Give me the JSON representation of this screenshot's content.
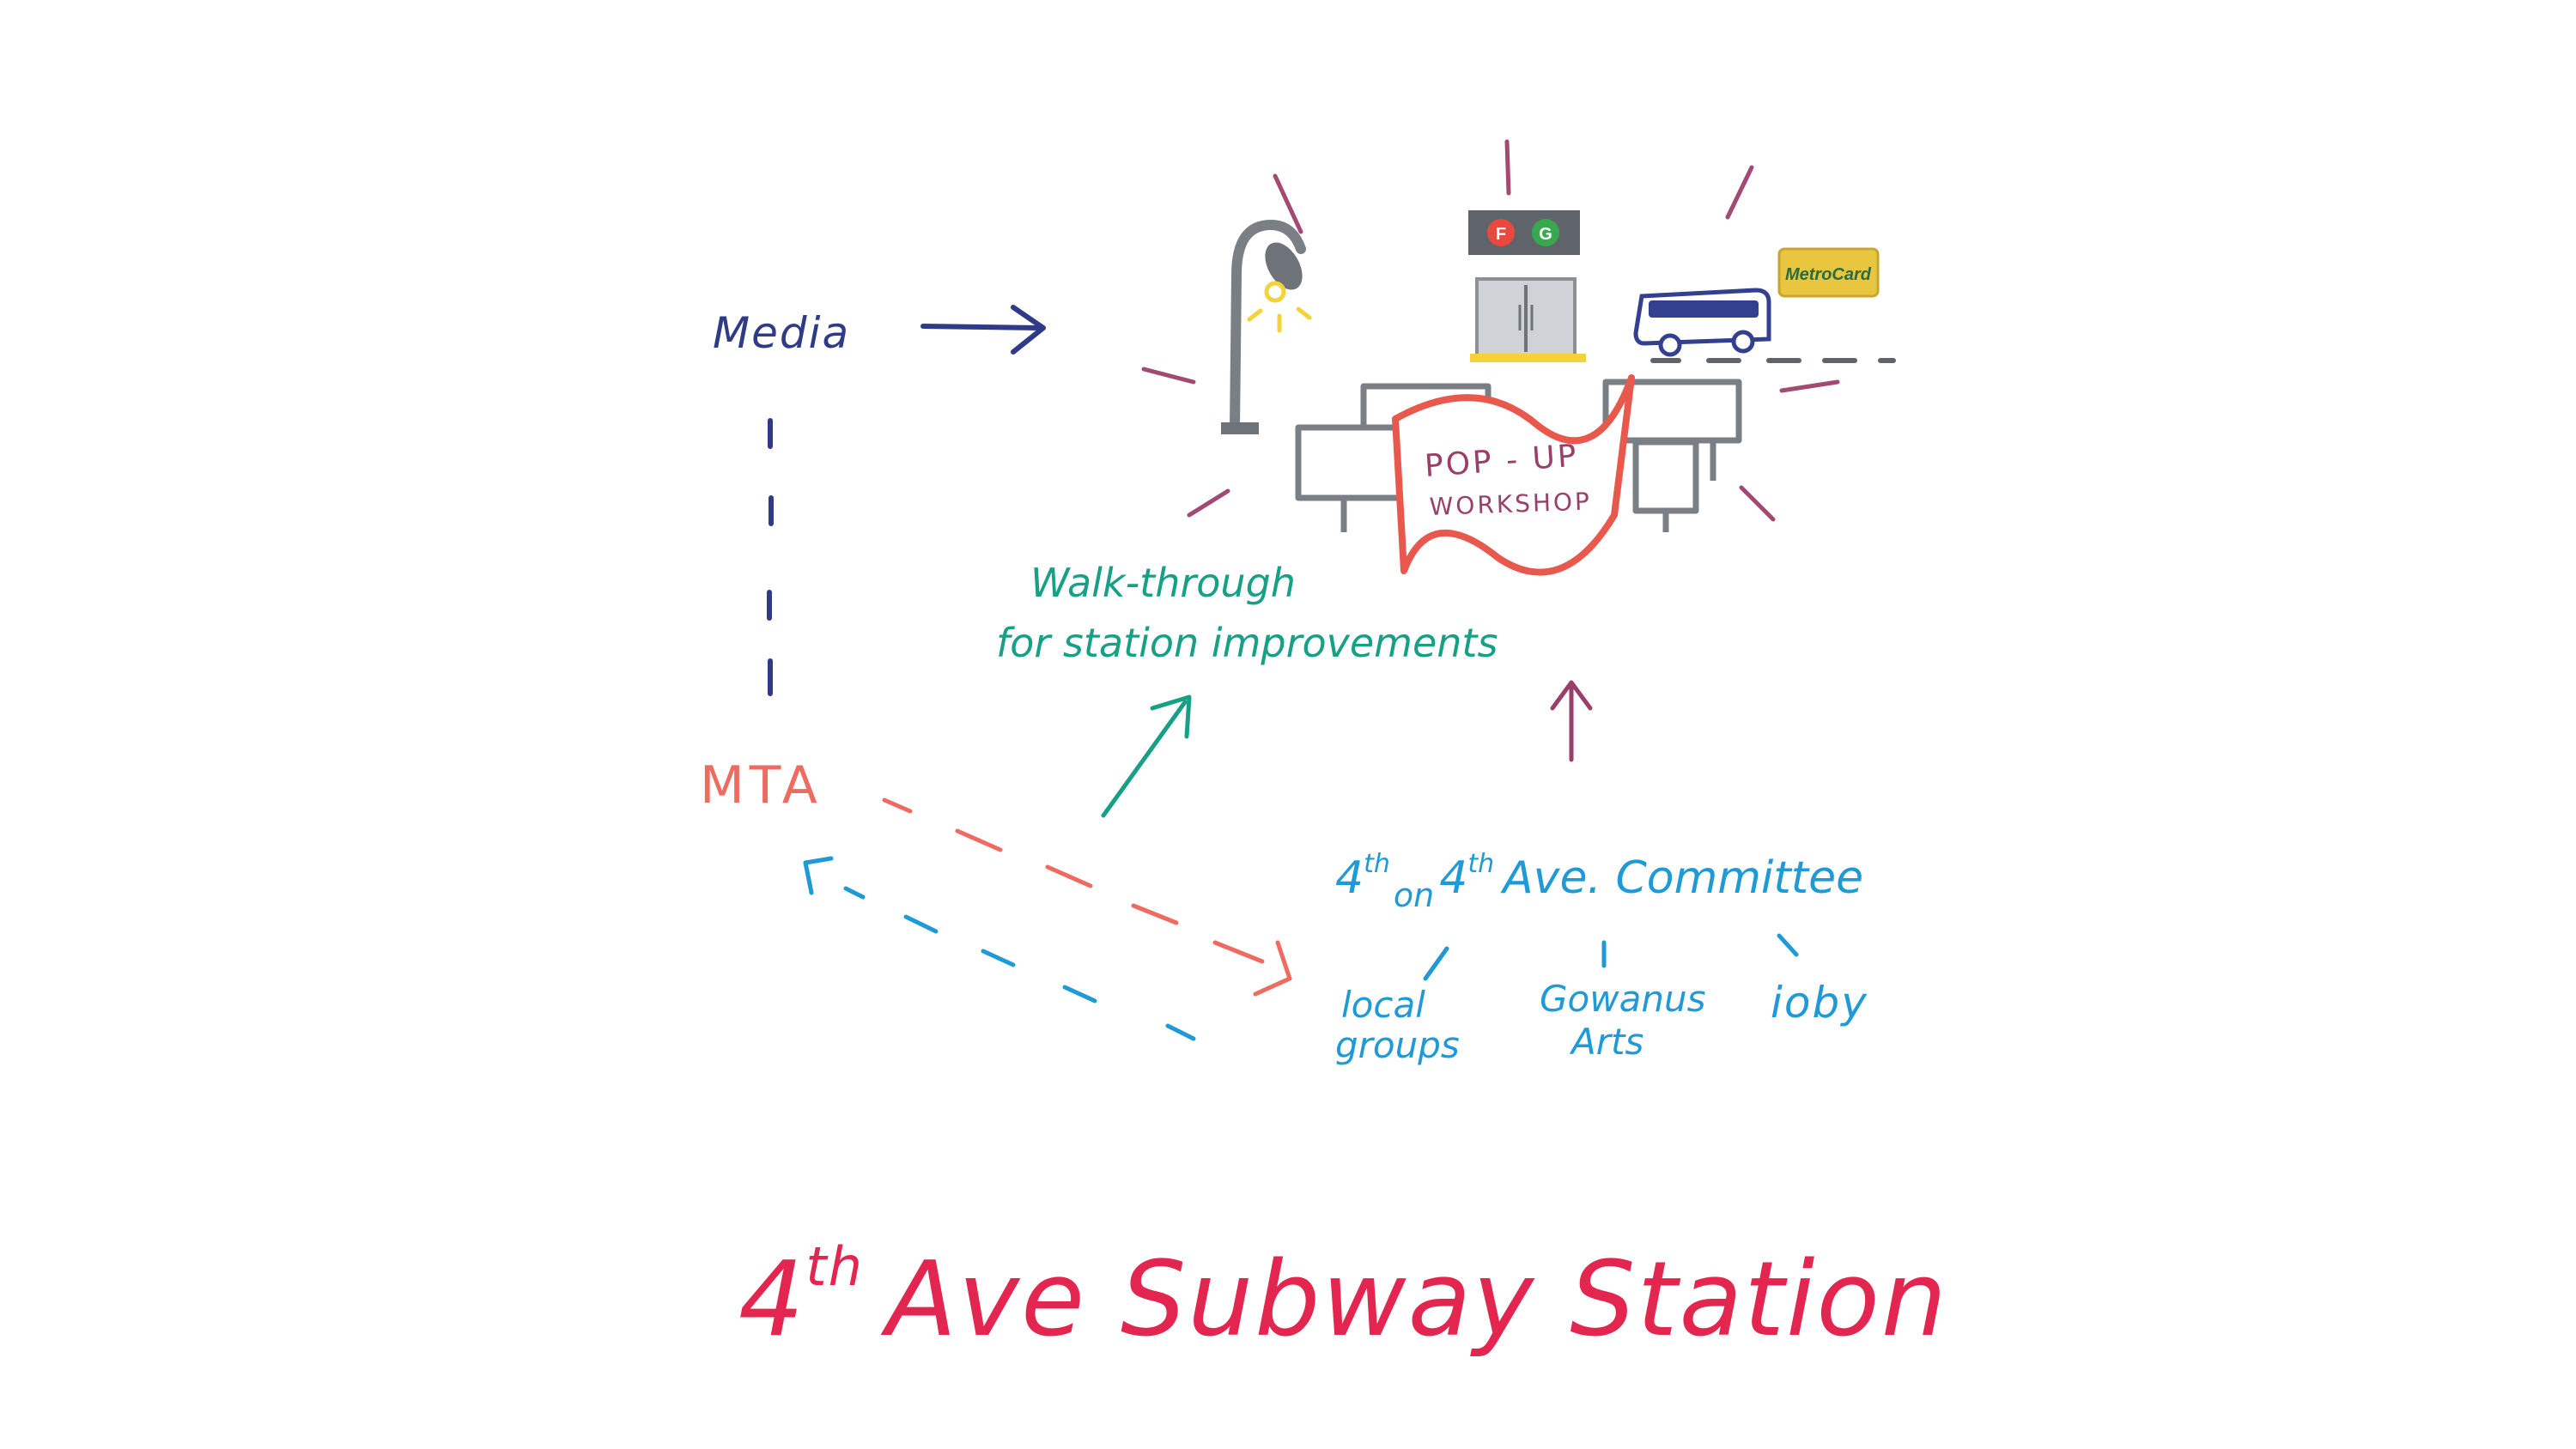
{
  "title": {
    "ordinal_number": "4",
    "ordinal_suffix": "th",
    "rest": "Ave Subway Station"
  },
  "nodes": {
    "media": "Media",
    "mta": "MTA",
    "walk_through_line1": "Walk-through",
    "walk_through_line2": "for station improvements",
    "popup_line1": "POP - UP",
    "popup_line2": "WORKSHOP",
    "committee": {
      "n1": "4",
      "s1": "th",
      "on": "on",
      "n2": "4",
      "s2": "th",
      "rest": "Ave. Committee"
    },
    "local_groups_line1": "local",
    "local_groups_line2": "groups",
    "gowanus_line1": "Gowanus",
    "gowanus_line2": "Arts",
    "ioby": "ioby"
  },
  "station_sign": {
    "line1": "F",
    "line2": "G"
  },
  "metrocard": "MetroCard",
  "colors": {
    "navy": "#2f3b86",
    "coral": "#ee6b61",
    "teal": "#17a085",
    "blue": "#1f9ad6",
    "magenta": "#e3264f",
    "mauve": "#9a3f6a",
    "gray": "#7a7f86",
    "f_train": "#e8483d",
    "g_train": "#37a84d",
    "lamp_light": "#f2d43a",
    "metrocard_yellow": "#e9c640"
  },
  "icons": [
    "street-lamp-icon",
    "subway-entrance-icon",
    "bus-icon",
    "metrocard-icon",
    "bench-icon",
    "banner-icon"
  ]
}
